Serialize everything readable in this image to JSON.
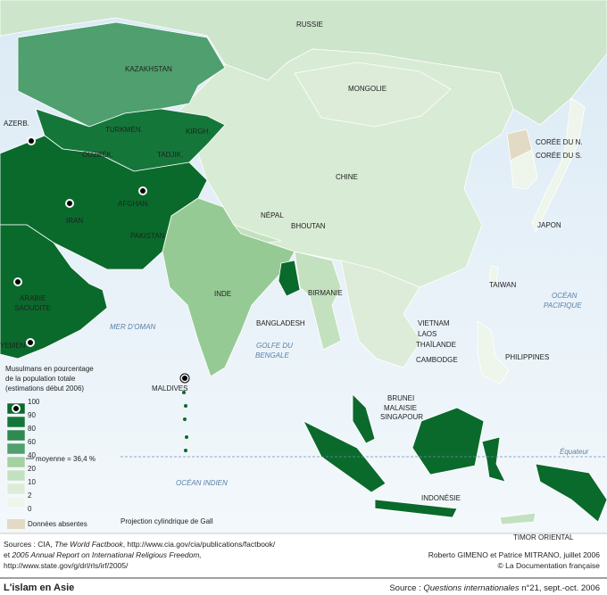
{
  "title": "L'islam en Asie",
  "source": {
    "prefix": "Source : ",
    "publication": "Questions internationales",
    "suffix": " n°21, sept.-oct. 2006"
  },
  "sources": {
    "line1_prefix": "Sources : CIA, ",
    "line1_italic": "The World Factbook",
    "line1_suffix": ", http://www.cia.gov/cia/publications/factbook/",
    "line2_prefix": "et ",
    "line2_italic": "2005 Annual Report on International Religious Freedom,",
    "line3": "http://www.state.gov/g/drl/rls/irf/2005/"
  },
  "credits": [
    "Roberto GIMENO et Patrice MITRANO, juillet 2006",
    "© La Documentation française"
  ],
  "map": {
    "russia": "RUSSIE",
    "kazakhstan": "KAZAKHSTAN",
    "mongolia": "MONGOLIE",
    "azerbaijan": "AZERB.",
    "turkmenistan": "TURKMÉN.",
    "kyrgyzstan": "KIRGH.",
    "uzbekistan": "OUZBÉK.",
    "tajikistan": "TADJIK.",
    "north_korea": "CORÉE DU N.",
    "south_korea": "CORÉE DU S.",
    "china": "CHINE",
    "iran": "IRAN",
    "afghanistan": "AFGHAN.",
    "nepal": "NÉPAL",
    "bhutan": "BHOUTAN",
    "japan": "JAPON",
    "pakistan": "PAKISTAN",
    "saudi": [
      "ARABIE",
      "SAOUDITE"
    ],
    "india": "INDE",
    "burma": "BIRMANIE",
    "taiwan": "TAIWAN",
    "bangladesh": "BANGLADESH",
    "pacific": [
      "OCÉAN",
      "PACIFIQUE"
    ],
    "oman_sea": "MER D'OMAN",
    "vietnam": "VIETNAM",
    "laos": "LAOS",
    "thailand": "THAÏLANDE",
    "cambodia": "CAMBODGE",
    "bengal": [
      "GOLFE DU",
      "BENGALE"
    ],
    "philippines": "PHILIPPINES",
    "yemen": "YEMEN",
    "maldives": "MALDIVES",
    "brunei": "BRUNEI",
    "malaysia": "MALAISIE",
    "singapore": "SINGAPOUR",
    "equator": "Équateur",
    "indonesia": "INDONÉSIE",
    "indian_ocean": "OCÉAN INDIEN",
    "east_timor": "TIMOR ORIENTAL"
  },
  "legend": {
    "title": [
      "Musulmans en pourcentage",
      "de la population totale",
      "(estimations début 2006)"
    ],
    "ticks": [
      100,
      90,
      80,
      60,
      40,
      20,
      10,
      2,
      0
    ],
    "colors": [
      "#0a6a2c",
      "#15763a",
      "#2e8a4f",
      "#4f9f6f",
      "#a3d1a0",
      "#c3e1bf",
      "#dcecd8",
      "#eef5ea"
    ],
    "average": "moyenne = 36,4 %",
    "missing": "Données absentes",
    "missing_color": "#e3dac6",
    "projection": "Projection cylindrique de Gall"
  }
}
